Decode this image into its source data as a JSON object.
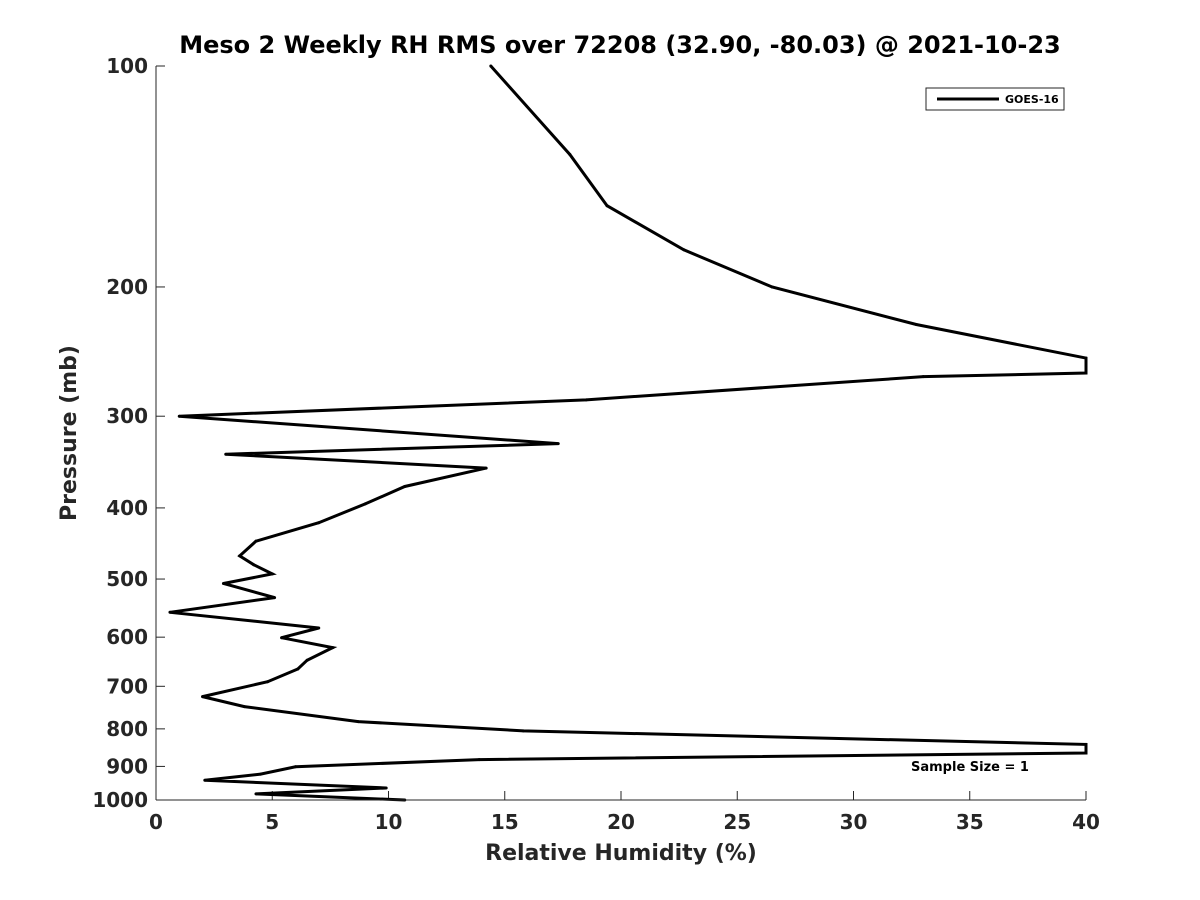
{
  "chart_data": {
    "type": "line",
    "title": "Meso 2 Weekly RH RMS over 72208 (32.90, -80.03) @ 2021-10-23",
    "xlabel": "Relative Humidity (%)",
    "ylabel": "Pressure (mb)",
    "xlim": [
      0,
      40
    ],
    "ylim": [
      100,
      1000
    ],
    "y_scale": "log",
    "y_reversed": true,
    "x_ticks": [
      "0",
      "5",
      "10",
      "15",
      "20",
      "25",
      "30",
      "35",
      "40"
    ],
    "y_ticks": [
      "100",
      "200",
      "300",
      "400",
      "500",
      "600",
      "700",
      "800",
      "900",
      "1000"
    ],
    "grid": false,
    "legend_position": "top-right",
    "annotation": "Sample Size = 1",
    "series": [
      {
        "name": "GOES-16",
        "color": "#000000",
        "x": [
          14.4,
          17.8,
          19.4,
          22.7,
          26.5,
          32.7,
          40,
          40,
          33,
          18.5,
          1,
          17.3,
          3,
          14.2,
          10.7,
          9,
          7,
          4.3,
          3.6,
          4.2,
          5,
          2.9,
          5.1,
          0.6,
          7,
          5.4,
          7.6,
          6.5,
          6.1,
          4.8,
          2,
          3.8,
          8.7,
          15.8,
          40,
          40,
          13.9,
          6,
          4.5,
          2.1,
          9.9,
          4.3,
          10.7
        ],
        "y": [
          100,
          132,
          155,
          178,
          200,
          225,
          250,
          262,
          265,
          285,
          300,
          327,
          338,
          353,
          374,
          395,
          419,
          444,
          465,
          478,
          492,
          507,
          530,
          555,
          583,
          601,
          620,
          645,
          663,
          690,
          723,
          746,
          782,
          805,
          840,
          863,
          881,
          901,
          922,
          940,
          963,
          981,
          1000
        ]
      }
    ]
  }
}
